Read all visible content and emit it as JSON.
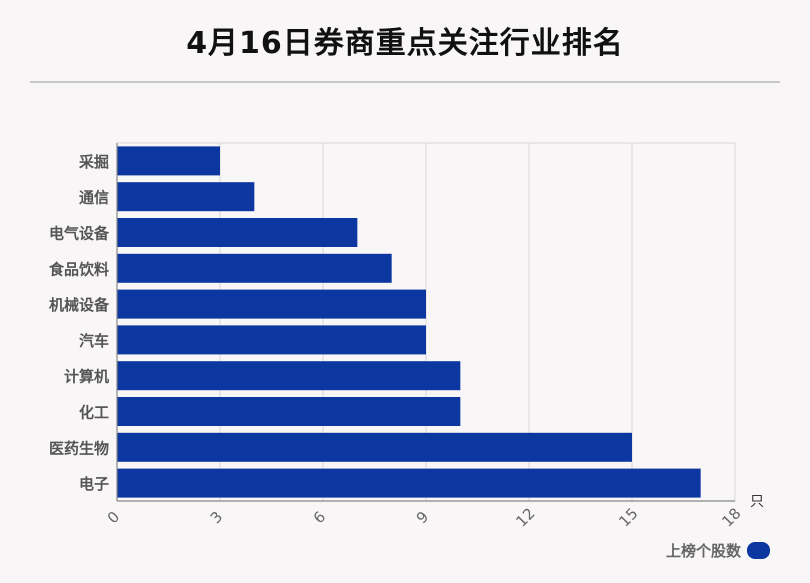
{
  "title": "4月16日券商重点关注行业排名",
  "chart_data": {
    "type": "bar",
    "orientation": "horizontal",
    "categories": [
      "采掘",
      "通信",
      "电气设备",
      "食品饮料",
      "机械设备",
      "汽车",
      "计算机",
      "化工",
      "医药生物",
      "电子"
    ],
    "series": [
      {
        "name": "上榜个股数",
        "values": [
          3,
          4,
          7,
          8,
          9,
          9,
          10,
          10,
          15,
          17
        ]
      }
    ],
    "xlim": [
      0,
      18
    ],
    "xticks": [
      0,
      3,
      6,
      9,
      12,
      15,
      18
    ],
    "xunit": "只",
    "grid": true,
    "legend_position": "bottom-right"
  },
  "colors": {
    "bar": "#0c36a0",
    "grid": "#d6d6d6",
    "axis": "#888888"
  }
}
